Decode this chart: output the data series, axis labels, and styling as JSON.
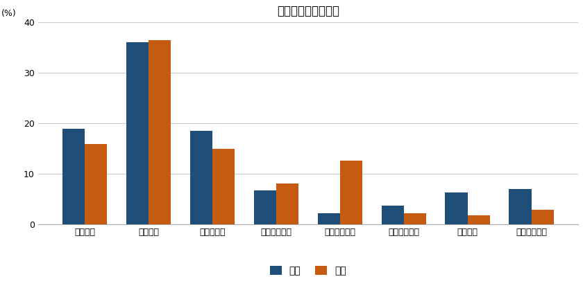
{
  "title": "最も困っている症状",
  "ylabel": "(%)",
  "categories": [
    "昼間頻尿",
    "夜間頻尿",
    "尿意切迫感",
    "切迫性尿失禁",
    "腹圧性尿失禁",
    "排尿開始遅延",
    "尿勢低下",
    "排尿後尿滴下"
  ],
  "male_values": [
    19.0,
    36.0,
    18.5,
    6.8,
    2.2,
    3.8,
    6.3,
    7.0
  ],
  "female_values": [
    16.0,
    36.5,
    15.0,
    8.2,
    12.7,
    2.2,
    1.9,
    3.0
  ],
  "male_color": "#1F4E79",
  "female_color": "#C55A11",
  "ylim": [
    0,
    40
  ],
  "yticks": [
    0,
    10,
    20,
    30,
    40
  ],
  "bar_width": 0.35,
  "legend_male": "男性",
  "legend_female": "女性",
  "background_color": "#ffffff",
  "grid_color": "#cccccc",
  "title_fontsize": 12,
  "axis_fontsize": 9,
  "legend_fontsize": 10
}
